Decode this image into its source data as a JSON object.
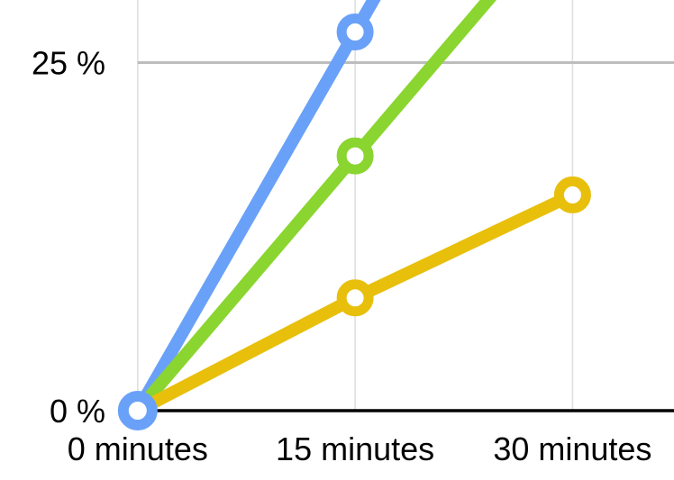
{
  "chart_data": {
    "type": "line",
    "x": [
      0,
      15,
      30
    ],
    "x_tick_labels": [
      "0 minutes",
      "15 minutes",
      "30 minutes"
    ],
    "y_ticks": [
      0,
      25
    ],
    "y_tick_labels": [
      "0 %",
      "25 %"
    ],
    "xlim": [
      -9.5,
      37
    ],
    "ylim": [
      0,
      29.5
    ],
    "grid": true,
    "series": [
      {
        "color": "#6aa1f8",
        "x": [
          0,
          15
        ],
        "values": [
          0,
          27.2
        ]
      },
      {
        "color": "#8ad52f",
        "x": [
          0,
          15
        ],
        "values": [
          0,
          18.3
        ]
      },
      {
        "color": "#e8bf0b",
        "x": [
          0,
          15,
          30
        ],
        "values": [
          0,
          8.1,
          15.5
        ]
      }
    ]
  }
}
